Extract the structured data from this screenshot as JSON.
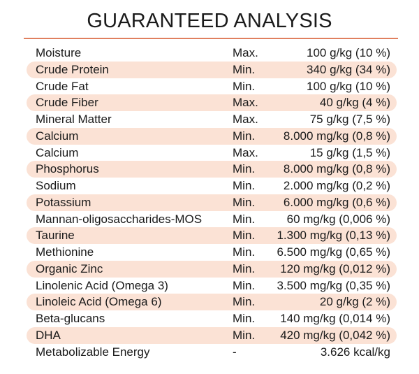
{
  "title": "GUARANTEED ANALYSIS",
  "colors": {
    "rule": "#e0805f",
    "row_shade": "#fbe2d5"
  },
  "rows": [
    {
      "nutrient": "Moisture",
      "qualifier": "Max.",
      "value": "100 g/kg (10 %)"
    },
    {
      "nutrient": "Crude Protein",
      "qualifier": "Min.",
      "value": "340 g/kg (34 %)"
    },
    {
      "nutrient": "Crude Fat",
      "qualifier": "Min.",
      "value": "100 g/kg (10 %)"
    },
    {
      "nutrient": "Crude Fiber",
      "qualifier": "Max.",
      "value": "40 g/kg (4 %)"
    },
    {
      "nutrient": "Mineral Matter",
      "qualifier": "Max.",
      "value": "75 g/kg (7,5 %)"
    },
    {
      "nutrient": "Calcium",
      "qualifier": "Min.",
      "value": "8.000 mg/kg (0,8 %)"
    },
    {
      "nutrient": "Calcium",
      "qualifier": "Max.",
      "value": "15 g/kg (1,5 %)"
    },
    {
      "nutrient": "Phosphorus",
      "qualifier": "Min.",
      "value": "8.000 mg/kg (0,8 %)"
    },
    {
      "nutrient": "Sodium",
      "qualifier": "Min.",
      "value": "2.000 mg/kg (0,2 %)"
    },
    {
      "nutrient": "Potassium",
      "qualifier": "Min.",
      "value": "6.000 mg/kg (0,6 %)"
    },
    {
      "nutrient": "Mannan-oligosaccharides-MOS",
      "qualifier": "Min.",
      "value": "60 mg/kg (0,006 %)"
    },
    {
      "nutrient": "Taurine",
      "qualifier": "Min.",
      "value": "1.300 mg/kg (0,13 %)"
    },
    {
      "nutrient": "Methionine",
      "qualifier": "Min.",
      "value": "6.500 mg/kg (0,65 %)"
    },
    {
      "nutrient": "Organic Zinc",
      "qualifier": "Min.",
      "value": "120 mg/kg (0,012 %)"
    },
    {
      "nutrient": "Linolenic Acid (Omega 3)",
      "qualifier": "Min.",
      "value": "3.500 mg/kg (0,35 %)"
    },
    {
      "nutrient": "Linoleic Acid (Omega 6)",
      "qualifier": "Min.",
      "value": "20 g/kg (2 %)"
    },
    {
      "nutrient": "Beta-glucans",
      "qualifier": "Min.",
      "value": "140 mg/kg (0,014 %)"
    },
    {
      "nutrient": "DHA",
      "qualifier": "Min.",
      "value": "420 mg/kg (0,042 %)"
    },
    {
      "nutrient": "Metabolizable Energy",
      "qualifier": "-",
      "value": "3.626 kcal/kg"
    }
  ]
}
